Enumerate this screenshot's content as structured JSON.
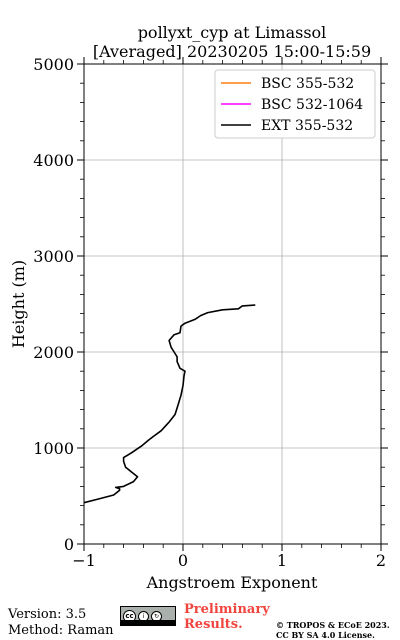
{
  "chart_data": {
    "type": "line",
    "title": "pollyxt_cyp at Limassol",
    "subtitle": "[Averaged] 20230205 15:00-15:59",
    "xlabel": "Angstroem Exponent",
    "ylabel": "Height (m)",
    "xlim": [
      -1,
      2
    ],
    "ylim": [
      0,
      5000
    ],
    "xticks": [
      -1,
      0,
      1,
      2
    ],
    "xtick_labels": [
      "−1",
      "0",
      "1",
      "2"
    ],
    "yticks": [
      0,
      1000,
      2000,
      3000,
      4000,
      5000
    ],
    "ytick_labels": [
      "0",
      "1000",
      "2000",
      "3000",
      "4000",
      "5000"
    ],
    "grid": true,
    "legend_position": "top-right",
    "series": [
      {
        "name": "BSC 355-532",
        "color": "#ff7f0e",
        "points": []
      },
      {
        "name": "BSC 532-1064",
        "color": "#ff00ff",
        "points": []
      },
      {
        "name": "EXT 355-532",
        "color": "#000000",
        "points": [
          [
            -1.0,
            430
          ],
          [
            -0.85,
            470
          ],
          [
            -0.7,
            510
          ],
          [
            -0.64,
            560
          ],
          [
            -0.64,
            575
          ],
          [
            -0.68,
            590
          ],
          [
            -0.6,
            600
          ],
          [
            -0.5,
            650
          ],
          [
            -0.46,
            700
          ],
          [
            -0.52,
            750
          ],
          [
            -0.58,
            800
          ],
          [
            -0.6,
            860
          ],
          [
            -0.6,
            900
          ],
          [
            -0.52,
            950
          ],
          [
            -0.42,
            1020
          ],
          [
            -0.35,
            1080
          ],
          [
            -0.3,
            1120
          ],
          [
            -0.22,
            1180
          ],
          [
            -0.14,
            1270
          ],
          [
            -0.08,
            1350
          ],
          [
            -0.05,
            1450
          ],
          [
            -0.02,
            1550
          ],
          [
            0.0,
            1650
          ],
          [
            0.01,
            1750
          ],
          [
            0.02,
            1800
          ],
          [
            -0.03,
            1830
          ],
          [
            -0.06,
            1900
          ],
          [
            -0.06,
            1950
          ],
          [
            -0.09,
            2000
          ],
          [
            -0.12,
            2050
          ],
          [
            -0.14,
            2120
          ],
          [
            -0.09,
            2180
          ],
          [
            -0.03,
            2200
          ],
          [
            -0.02,
            2270
          ],
          [
            0.02,
            2300
          ],
          [
            0.12,
            2340
          ],
          [
            0.18,
            2380
          ],
          [
            0.25,
            2410
          ],
          [
            0.4,
            2440
          ],
          [
            0.56,
            2450
          ],
          [
            0.6,
            2480
          ],
          [
            0.73,
            2490
          ]
        ]
      }
    ]
  },
  "footer": {
    "version": "Version: 3.5",
    "method": "Method: Raman",
    "cc_badge": "cc by sa",
    "preliminary_line1": "Preliminary",
    "preliminary_line2": "Results.",
    "copyright_line1": "© TROPOS & ECoE 2023.",
    "copyright_line2": "CC BY SA 4.0 License."
  },
  "colors": {
    "grid": "#b0b0b0",
    "preliminary": "#f0453f"
  }
}
